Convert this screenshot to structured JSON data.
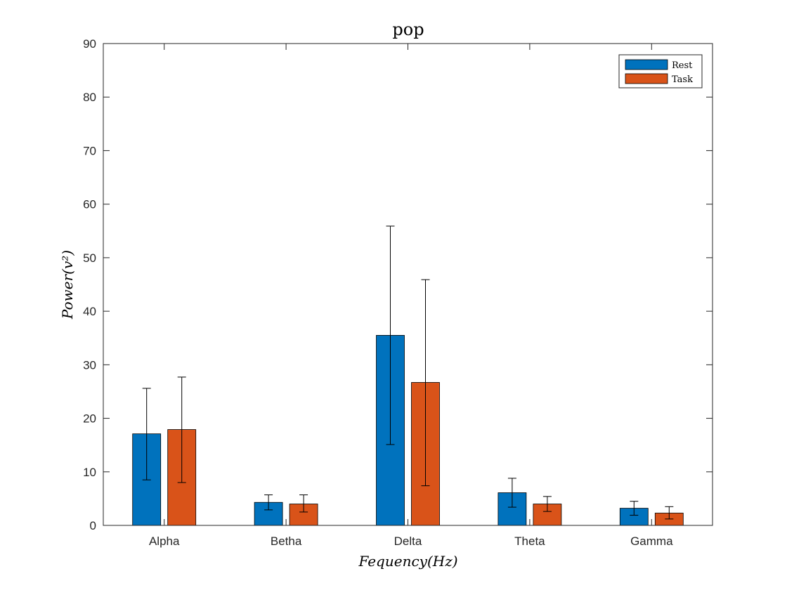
{
  "chart_data": {
    "type": "bar",
    "title": "pop",
    "xlabel": "Fequency(Hz)",
    "ylabel": "Power(v²)",
    "categories": [
      "Alpha",
      "Betha",
      "Delta",
      "Theta",
      "Gamma"
    ],
    "series": [
      {
        "name": "Rest",
        "color": "#0072BD",
        "values": [
          17.1,
          4.3,
          35.5,
          6.1,
          3.2
        ],
        "error_low": [
          8.5,
          2.9,
          15.1,
          3.4,
          1.9
        ],
        "error_high": [
          25.6,
          5.7,
          55.9,
          8.8,
          4.5
        ]
      },
      {
        "name": "Task",
        "color": "#D95319",
        "values": [
          17.9,
          4.0,
          26.7,
          4.0,
          2.3
        ],
        "error_low": [
          8.0,
          2.5,
          7.4,
          2.6,
          1.2
        ],
        "error_high": [
          27.7,
          5.7,
          45.9,
          5.4,
          3.5
        ]
      }
    ],
    "ylim": [
      0,
      90
    ],
    "yticks": [
      0,
      10,
      20,
      30,
      40,
      50,
      60,
      70,
      80,
      90
    ],
    "grid": false,
    "legend_position": "top-right"
  }
}
